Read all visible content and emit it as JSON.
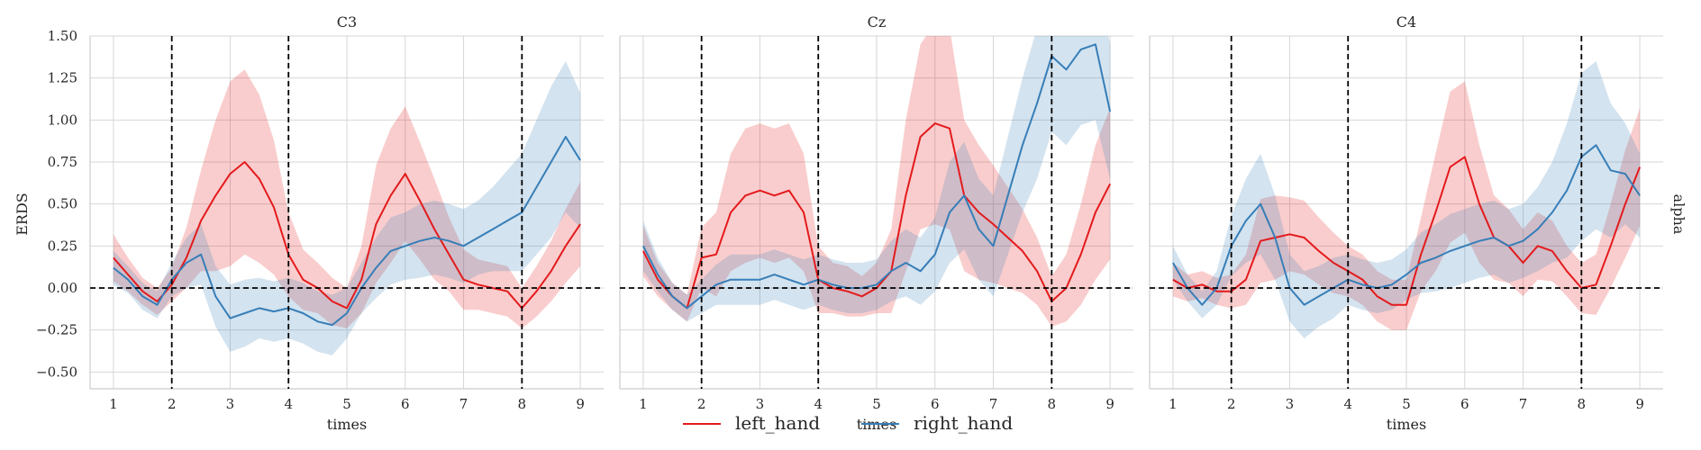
{
  "chart_data": {
    "type": "line",
    "ylabel": "ERDS",
    "row_label": "alpha",
    "xlabel": "times",
    "xlim": [
      0.6,
      9.4
    ],
    "ylim": [
      -0.6,
      1.5
    ],
    "x_ticks": [
      1,
      2,
      3,
      4,
      5,
      6,
      7,
      8,
      9
    ],
    "y_ticks": [
      -0.5,
      -0.25,
      0.0,
      0.25,
      0.5,
      0.75,
      1.0,
      1.25,
      1.5
    ],
    "y_tick_labels": [
      "−0.50",
      "−0.25",
      "0.00",
      "0.25",
      "0.50",
      "0.75",
      "1.00",
      "1.25",
      "1.50"
    ],
    "reference_vlines": [
      2,
      4,
      8
    ],
    "reference_hline": 0,
    "grid": true,
    "legend_position": "bottom-center",
    "legend": [
      {
        "name": "left_hand",
        "color": "#e41a1c"
      },
      {
        "name": "right_hand",
        "color": "#377eb8"
      }
    ],
    "panels": [
      {
        "title": "C3",
        "series": [
          {
            "name": "left_hand",
            "x": [
              1.0,
              1.25,
              1.5,
              1.75,
              2.0,
              2.25,
              2.5,
              2.75,
              3.0,
              3.25,
              3.5,
              3.75,
              4.0,
              4.25,
              4.5,
              4.75,
              5.0,
              5.25,
              5.5,
              5.75,
              6.0,
              6.25,
              6.5,
              6.75,
              7.0,
              7.25,
              7.5,
              7.75,
              8.0,
              8.25,
              8.5,
              8.75,
              9.0
            ],
            "y": [
              0.18,
              0.08,
              -0.02,
              -0.08,
              0.02,
              0.18,
              0.4,
              0.55,
              0.68,
              0.75,
              0.65,
              0.48,
              0.2,
              0.05,
              0.0,
              -0.08,
              -0.12,
              0.05,
              0.38,
              0.55,
              0.68,
              0.52,
              0.35,
              0.2,
              0.05,
              0.02,
              0.0,
              -0.02,
              -0.12,
              -0.02,
              0.1,
              0.25,
              0.38
            ],
            "ci_half_width": [
              0.14,
              0.1,
              0.08,
              0.08,
              0.1,
              0.18,
              0.3,
              0.45,
              0.55,
              0.55,
              0.5,
              0.4,
              0.25,
              0.18,
              0.15,
              0.14,
              0.12,
              0.2,
              0.35,
              0.4,
              0.4,
              0.35,
              0.3,
              0.22,
              0.18,
              0.15,
              0.15,
              0.15,
              0.12,
              0.15,
              0.18,
              0.22,
              0.25
            ]
          },
          {
            "name": "right_hand",
            "x": [
              1.0,
              1.25,
              1.5,
              1.75,
              2.0,
              2.25,
              2.5,
              2.75,
              3.0,
              3.25,
              3.5,
              3.75,
              4.0,
              4.25,
              4.5,
              4.75,
              5.0,
              5.25,
              5.5,
              5.75,
              6.0,
              6.25,
              6.5,
              6.75,
              7.0,
              7.25,
              7.5,
              7.75,
              8.0,
              8.25,
              8.5,
              8.75,
              9.0
            ],
            "y": [
              0.12,
              0.05,
              -0.05,
              -0.1,
              0.05,
              0.15,
              0.2,
              -0.05,
              -0.18,
              -0.15,
              -0.12,
              -0.14,
              -0.12,
              -0.15,
              -0.2,
              -0.22,
              -0.15,
              0.0,
              0.12,
              0.22,
              0.25,
              0.28,
              0.3,
              0.28,
              0.25,
              0.3,
              0.35,
              0.4,
              0.45,
              0.6,
              0.75,
              0.9,
              0.76
            ],
            "ci_half_width": [
              0.1,
              0.08,
              0.08,
              0.08,
              0.1,
              0.15,
              0.18,
              0.18,
              0.2,
              0.2,
              0.18,
              0.18,
              0.18,
              0.18,
              0.18,
              0.18,
              0.15,
              0.15,
              0.18,
              0.2,
              0.2,
              0.22,
              0.22,
              0.22,
              0.22,
              0.22,
              0.25,
              0.3,
              0.35,
              0.4,
              0.45,
              0.45,
              0.4
            ]
          }
        ]
      },
      {
        "title": "Cz",
        "series": [
          {
            "name": "left_hand",
            "x": [
              1.0,
              1.25,
              1.5,
              1.75,
              2.0,
              2.25,
              2.5,
              2.75,
              3.0,
              3.25,
              3.5,
              3.75,
              4.0,
              4.25,
              4.5,
              4.75,
              5.0,
              5.25,
              5.5,
              5.75,
              6.0,
              6.25,
              6.5,
              6.75,
              7.0,
              7.25,
              7.5,
              7.75,
              8.0,
              8.25,
              8.5,
              8.75,
              9.0
            ],
            "y": [
              0.22,
              0.05,
              -0.05,
              -0.12,
              0.18,
              0.2,
              0.45,
              0.55,
              0.58,
              0.55,
              0.58,
              0.45,
              0.05,
              0.0,
              -0.02,
              -0.05,
              0.0,
              0.1,
              0.55,
              0.9,
              0.98,
              0.95,
              0.55,
              0.45,
              0.38,
              0.3,
              0.22,
              0.1,
              -0.08,
              0.0,
              0.2,
              0.45,
              0.62
            ],
            "ci_half_width": [
              0.15,
              0.1,
              0.08,
              0.08,
              0.18,
              0.25,
              0.35,
              0.4,
              0.4,
              0.4,
              0.4,
              0.35,
              0.2,
              0.15,
              0.15,
              0.12,
              0.15,
              0.25,
              0.45,
              0.55,
              0.6,
              0.6,
              0.45,
              0.4,
              0.35,
              0.3,
              0.25,
              0.2,
              0.15,
              0.2,
              0.3,
              0.4,
              0.45
            ]
          },
          {
            "name": "right_hand",
            "x": [
              1.0,
              1.25,
              1.5,
              1.75,
              2.0,
              2.25,
              2.5,
              2.75,
              3.0,
              3.25,
              3.5,
              3.75,
              4.0,
              4.25,
              4.5,
              4.75,
              5.0,
              5.25,
              5.5,
              5.75,
              6.0,
              6.25,
              6.5,
              6.75,
              7.0,
              7.25,
              7.5,
              7.75,
              8.0,
              8.25,
              8.5,
              8.75,
              9.0
            ],
            "y": [
              0.25,
              0.08,
              -0.05,
              -0.12,
              -0.05,
              0.02,
              0.05,
              0.05,
              0.05,
              0.08,
              0.05,
              0.02,
              0.05,
              0.02,
              0.0,
              0.0,
              0.02,
              0.1,
              0.15,
              0.1,
              0.2,
              0.45,
              0.55,
              0.35,
              0.25,
              0.55,
              0.85,
              1.1,
              1.38,
              1.3,
              1.42,
              1.45,
              1.05
            ],
            "ci_half_width": [
              0.15,
              0.1,
              0.08,
              0.08,
              0.1,
              0.12,
              0.15,
              0.15,
              0.15,
              0.15,
              0.15,
              0.15,
              0.15,
              0.15,
              0.15,
              0.15,
              0.15,
              0.18,
              0.2,
              0.2,
              0.22,
              0.3,
              0.32,
              0.3,
              0.3,
              0.35,
              0.4,
              0.45,
              0.45,
              0.45,
              0.45,
              0.45,
              0.4
            ]
          }
        ]
      },
      {
        "title": "C4",
        "series": [
          {
            "name": "left_hand",
            "x": [
              1.0,
              1.25,
              1.5,
              1.75,
              2.0,
              2.25,
              2.5,
              2.75,
              3.0,
              3.25,
              3.5,
              3.75,
              4.0,
              4.25,
              4.5,
              4.75,
              5.0,
              5.25,
              5.5,
              5.75,
              6.0,
              6.25,
              6.5,
              6.75,
              7.0,
              7.25,
              7.5,
              7.75,
              8.0,
              8.25,
              8.5,
              8.75,
              9.0
            ],
            "y": [
              0.05,
              0.0,
              0.02,
              -0.02,
              -0.02,
              0.05,
              0.28,
              0.3,
              0.32,
              0.3,
              0.22,
              0.15,
              0.1,
              0.05,
              -0.05,
              -0.1,
              -0.1,
              0.2,
              0.45,
              0.72,
              0.78,
              0.5,
              0.3,
              0.25,
              0.15,
              0.25,
              0.22,
              0.1,
              0.0,
              0.02,
              0.25,
              0.5,
              0.72
            ],
            "ci_half_width": [
              0.1,
              0.08,
              0.08,
              0.08,
              0.1,
              0.15,
              0.25,
              0.25,
              0.22,
              0.22,
              0.2,
              0.18,
              0.15,
              0.15,
              0.15,
              0.15,
              0.15,
              0.22,
              0.35,
              0.45,
              0.45,
              0.35,
              0.25,
              0.22,
              0.2,
              0.2,
              0.18,
              0.15,
              0.15,
              0.18,
              0.25,
              0.32,
              0.35
            ]
          },
          {
            "name": "right_hand",
            "x": [
              1.0,
              1.25,
              1.5,
              1.75,
              2.0,
              2.25,
              2.5,
              2.75,
              3.0,
              3.25,
              3.5,
              3.75,
              4.0,
              4.25,
              4.5,
              4.75,
              5.0,
              5.25,
              5.5,
              5.75,
              6.0,
              6.25,
              6.5,
              6.75,
              7.0,
              7.25,
              7.5,
              7.75,
              8.0,
              8.25,
              8.5,
              8.75,
              9.0
            ],
            "y": [
              0.15,
              0.0,
              -0.1,
              0.0,
              0.25,
              0.4,
              0.5,
              0.3,
              0.0,
              -0.1,
              -0.05,
              0.0,
              0.05,
              0.02,
              0.0,
              0.02,
              0.08,
              0.15,
              0.18,
              0.22,
              0.25,
              0.28,
              0.3,
              0.25,
              0.28,
              0.35,
              0.45,
              0.58,
              0.78,
              0.85,
              0.7,
              0.68,
              0.55
            ],
            "ci_half_width": [
              0.1,
              0.08,
              0.08,
              0.1,
              0.18,
              0.25,
              0.3,
              0.25,
              0.2,
              0.2,
              0.18,
              0.18,
              0.15,
              0.15,
              0.15,
              0.15,
              0.15,
              0.18,
              0.2,
              0.22,
              0.22,
              0.22,
              0.22,
              0.22,
              0.22,
              0.25,
              0.3,
              0.4,
              0.5,
              0.5,
              0.4,
              0.3,
              0.25
            ]
          }
        ]
      }
    ]
  },
  "colors": {
    "left_hand": "#e41a1c",
    "right_hand": "#377eb8",
    "grid": "#d6d6d6",
    "spine": "#cccccc"
  }
}
